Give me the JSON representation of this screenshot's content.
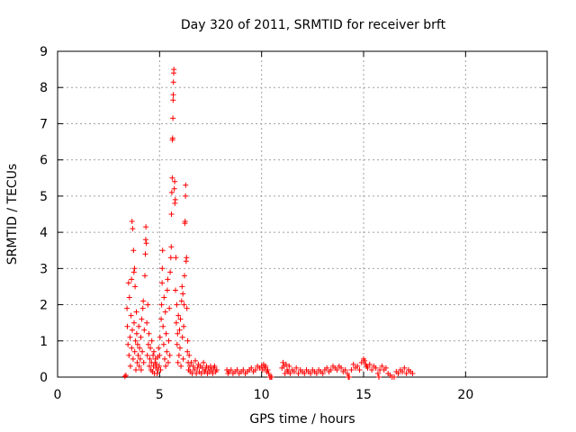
{
  "chart_data": {
    "type": "scatter",
    "title": "Day 320 of 2011, SRMTID for receiver brft",
    "xlabel": "GPS time / hours",
    "ylabel": "SRMTID / TECUs",
    "xlim": [
      0,
      24
    ],
    "ylim": [
      0,
      9
    ],
    "x_ticks": [
      "0",
      "5",
      "10",
      "15",
      "20"
    ],
    "y_ticks": [
      "0",
      "1",
      "2",
      "3",
      "4",
      "5",
      "6",
      "7",
      "8",
      "9"
    ],
    "grid": true,
    "legend": "none",
    "marker": "+",
    "color": "#ff0000",
    "series": [
      {
        "points": [
          [
            3.3,
            0.02
          ],
          [
            3.35,
            0.05
          ],
          [
            3.4,
            1.9
          ],
          [
            3.42,
            1.4
          ],
          [
            3.45,
            0.9
          ],
          [
            3.48,
            2.6
          ],
          [
            3.5,
            0.6
          ],
          [
            3.52,
            2.2
          ],
          [
            3.55,
            1.1
          ],
          [
            3.57,
            0.3
          ],
          [
            3.6,
            1.7
          ],
          [
            3.62,
            2.7
          ],
          [
            3.63,
            0.8
          ],
          [
            3.65,
            4.3
          ],
          [
            3.66,
            1.3
          ],
          [
            3.68,
            4.1
          ],
          [
            3.7,
            0.5
          ],
          [
            3.72,
            3.5
          ],
          [
            3.74,
            2.9
          ],
          [
            3.75,
            1.5
          ],
          [
            3.77,
            3.0
          ],
          [
            3.78,
            0.7
          ],
          [
            3.8,
            2.5
          ],
          [
            3.82,
            1.0
          ],
          [
            3.84,
            0.2
          ],
          [
            3.86,
            1.8
          ],
          [
            3.88,
            1.2
          ],
          [
            3.9,
            0.4
          ],
          [
            3.92,
            0.9
          ],
          [
            3.95,
            0.6
          ],
          [
            3.98,
            1.4
          ],
          [
            4.0,
            0.3
          ],
          [
            4.02,
            0.8
          ],
          [
            4.05,
            0.5
          ],
          [
            4.08,
            1.1
          ],
          [
            4.1,
            0.2
          ],
          [
            4.12,
            1.6
          ],
          [
            4.15,
            0.7
          ],
          [
            4.18,
            1.9
          ],
          [
            4.2,
            2.1
          ],
          [
            4.22,
            0.4
          ],
          [
            4.25,
            1.3
          ],
          [
            4.28,
            2.8
          ],
          [
            4.3,
            3.4
          ],
          [
            4.32,
            3.8
          ],
          [
            4.33,
            4.15
          ],
          [
            4.35,
            3.7
          ],
          [
            4.37,
            1.5
          ],
          [
            4.4,
            0.6
          ],
          [
            4.42,
            2.0
          ],
          [
            4.45,
            0.9
          ],
          [
            4.48,
            1.2
          ],
          [
            4.5,
            0.3
          ],
          [
            4.52,
            0.5
          ],
          [
            4.55,
            0.8
          ],
          [
            4.58,
            0.2
          ],
          [
            4.6,
            0.4
          ],
          [
            4.62,
            1.0
          ],
          [
            4.65,
            0.15
          ],
          [
            4.68,
            0.6
          ],
          [
            4.7,
            0.3
          ],
          [
            4.72,
            0.7
          ],
          [
            4.75,
            0.1
          ],
          [
            4.78,
            0.4
          ],
          [
            4.8,
            0.5
          ],
          [
            4.82,
            0.25
          ],
          [
            4.85,
            0.35
          ],
          [
            4.88,
            0.1
          ],
          [
            4.9,
            0.55
          ],
          [
            4.92,
            0.2
          ],
          [
            4.95,
            0.8
          ],
          [
            4.98,
            0.3
          ],
          [
            5.0,
            0.6
          ],
          [
            5.02,
            1.1
          ],
          [
            5.05,
            0.2
          ],
          [
            5.08,
            1.6
          ],
          [
            5.1,
            2.0
          ],
          [
            5.12,
            2.6
          ],
          [
            5.13,
            3.0
          ],
          [
            5.15,
            3.5
          ],
          [
            5.17,
            1.4
          ],
          [
            5.2,
            0.9
          ],
          [
            5.22,
            2.2
          ],
          [
            5.25,
            0.5
          ],
          [
            5.28,
            1.8
          ],
          [
            5.3,
            0.3
          ],
          [
            5.32,
            1.2
          ],
          [
            5.35,
            0.7
          ],
          [
            5.38,
            2.4
          ],
          [
            5.4,
            2.7
          ],
          [
            5.42,
            0.4
          ],
          [
            5.45,
            1.0
          ],
          [
            5.48,
            1.9
          ],
          [
            5.5,
            0.6
          ],
          [
            5.52,
            2.9
          ],
          [
            5.55,
            3.3
          ],
          [
            5.57,
            3.6
          ],
          [
            5.58,
            4.5
          ],
          [
            5.6,
            5.1
          ],
          [
            5.62,
            5.5
          ],
          [
            5.63,
            6.55
          ],
          [
            5.64,
            6.6
          ],
          [
            5.65,
            7.15
          ],
          [
            5.66,
            7.65
          ],
          [
            5.67,
            7.8
          ],
          [
            5.68,
            8.15
          ],
          [
            5.69,
            8.4
          ],
          [
            5.7,
            8.5
          ],
          [
            5.72,
            5.2
          ],
          [
            5.74,
            5.4
          ],
          [
            5.75,
            4.8
          ],
          [
            5.77,
            4.9
          ],
          [
            5.78,
            2.4
          ],
          [
            5.8,
            3.3
          ],
          [
            5.82,
            1.5
          ],
          [
            5.84,
            2.0
          ],
          [
            5.86,
            0.9
          ],
          [
            5.88,
            1.2
          ],
          [
            5.9,
            0.4
          ],
          [
            5.92,
            1.7
          ],
          [
            5.95,
            0.6
          ],
          [
            5.98,
            1.3
          ],
          [
            6.0,
            0.8
          ],
          [
            6.02,
            1.6
          ],
          [
            6.05,
            0.3
          ],
          [
            6.08,
            2.1
          ],
          [
            6.1,
            2.5
          ],
          [
            6.12,
            1.1
          ],
          [
            6.14,
            2.3
          ],
          [
            6.16,
            0.5
          ],
          [
            6.18,
            1.4
          ],
          [
            6.2,
            2.0
          ],
          [
            6.22,
            2.8
          ],
          [
            6.24,
            4.25
          ],
          [
            6.25,
            4.3
          ],
          [
            6.27,
            5.0
          ],
          [
            6.28,
            5.3
          ],
          [
            6.3,
            3.2
          ],
          [
            6.32,
            3.3
          ],
          [
            6.34,
            1.9
          ],
          [
            6.36,
            0.7
          ],
          [
            6.38,
            1.0
          ],
          [
            6.4,
            0.4
          ],
          [
            6.42,
            0.2
          ],
          [
            6.45,
            0.6
          ],
          [
            6.48,
            0.3
          ],
          [
            6.5,
            0.15
          ],
          [
            6.55,
            0.4
          ],
          [
            6.6,
            0.1
          ],
          [
            6.65,
            0.3
          ],
          [
            6.7,
            0.2
          ],
          [
            6.75,
            0.45
          ],
          [
            6.8,
            0.1
          ],
          [
            6.85,
            0.25
          ],
          [
            6.9,
            0.35
          ],
          [
            6.95,
            0.15
          ],
          [
            7.0,
            0.3
          ],
          [
            7.05,
            0.1
          ],
          [
            7.1,
            0.25
          ],
          [
            7.15,
            0.4
          ],
          [
            7.2,
            0.15
          ],
          [
            7.25,
            0.2
          ],
          [
            7.3,
            0.3
          ],
          [
            7.35,
            0.1
          ],
          [
            7.4,
            0.25
          ],
          [
            7.45,
            0.15
          ],
          [
            7.5,
            0.3
          ],
          [
            7.55,
            0.2
          ],
          [
            7.6,
            0.1
          ],
          [
            7.65,
            0.25
          ],
          [
            7.7,
            0.3
          ],
          [
            7.75,
            0.15
          ],
          [
            7.8,
            0.2
          ],
          [
            8.3,
            0.2
          ],
          [
            8.35,
            0.1
          ],
          [
            8.4,
            0.15
          ],
          [
            8.5,
            0.2
          ],
          [
            8.6,
            0.1
          ],
          [
            8.7,
            0.15
          ],
          [
            8.8,
            0.2
          ],
          [
            8.9,
            0.1
          ],
          [
            9.0,
            0.15
          ],
          [
            9.1,
            0.2
          ],
          [
            9.2,
            0.1
          ],
          [
            9.3,
            0.15
          ],
          [
            9.4,
            0.2
          ],
          [
            9.5,
            0.25
          ],
          [
            9.6,
            0.15
          ],
          [
            9.7,
            0.2
          ],
          [
            9.8,
            0.3
          ],
          [
            9.9,
            0.25
          ],
          [
            10.0,
            0.3
          ],
          [
            10.05,
            0.2
          ],
          [
            10.1,
            0.35
          ],
          [
            10.15,
            0.25
          ],
          [
            10.2,
            0.3
          ],
          [
            10.25,
            0.15
          ],
          [
            10.3,
            0.2
          ],
          [
            10.35,
            0.1
          ],
          [
            10.4,
            0.0
          ],
          [
            10.45,
            0.0
          ],
          [
            10.5,
            0.0
          ],
          [
            11.0,
            0.25
          ],
          [
            11.05,
            0.4
          ],
          [
            11.1,
            0.3
          ],
          [
            11.15,
            0.1
          ],
          [
            11.2,
            0.35
          ],
          [
            11.25,
            0.2
          ],
          [
            11.3,
            0.15
          ],
          [
            11.35,
            0.3
          ],
          [
            11.4,
            0.1
          ],
          [
            11.5,
            0.2
          ],
          [
            11.6,
            0.15
          ],
          [
            11.7,
            0.25
          ],
          [
            11.8,
            0.1
          ],
          [
            11.9,
            0.2
          ],
          [
            12.0,
            0.15
          ],
          [
            12.1,
            0.1
          ],
          [
            12.2,
            0.2
          ],
          [
            12.3,
            0.15
          ],
          [
            12.4,
            0.1
          ],
          [
            12.5,
            0.2
          ],
          [
            12.6,
            0.15
          ],
          [
            12.7,
            0.1
          ],
          [
            12.8,
            0.2
          ],
          [
            12.9,
            0.15
          ],
          [
            13.0,
            0.1
          ],
          [
            13.1,
            0.2
          ],
          [
            13.2,
            0.25
          ],
          [
            13.3,
            0.15
          ],
          [
            13.4,
            0.2
          ],
          [
            13.5,
            0.3
          ],
          [
            13.6,
            0.25
          ],
          [
            13.7,
            0.2
          ],
          [
            13.8,
            0.3
          ],
          [
            13.9,
            0.25
          ],
          [
            14.0,
            0.15
          ],
          [
            14.1,
            0.2
          ],
          [
            14.2,
            0.1
          ],
          [
            14.25,
            0.0
          ],
          [
            14.3,
            0.0
          ],
          [
            14.4,
            0.2
          ],
          [
            14.5,
            0.35
          ],
          [
            14.6,
            0.25
          ],
          [
            14.7,
            0.3
          ],
          [
            14.8,
            0.2
          ],
          [
            14.9,
            0.4
          ],
          [
            15.0,
            0.5
          ],
          [
            15.05,
            0.45
          ],
          [
            15.1,
            0.35
          ],
          [
            15.15,
            0.3
          ],
          [
            15.2,
            0.25
          ],
          [
            15.3,
            0.35
          ],
          [
            15.4,
            0.2
          ],
          [
            15.5,
            0.3
          ],
          [
            15.6,
            0.25
          ],
          [
            15.7,
            0.1
          ],
          [
            15.75,
            0.0
          ],
          [
            15.8,
            0.2
          ],
          [
            15.9,
            0.3
          ],
          [
            16.0,
            0.2
          ],
          [
            16.1,
            0.25
          ],
          [
            16.2,
            0.1
          ],
          [
            16.3,
            0.05
          ],
          [
            16.4,
            0.0
          ],
          [
            16.5,
            0.0
          ],
          [
            16.6,
            0.15
          ],
          [
            16.7,
            0.1
          ],
          [
            16.8,
            0.2
          ],
          [
            16.9,
            0.15
          ],
          [
            17.0,
            0.25
          ],
          [
            17.1,
            0.1
          ],
          [
            17.2,
            0.2
          ],
          [
            17.3,
            0.15
          ],
          [
            17.4,
            0.1
          ]
        ]
      }
    ]
  }
}
